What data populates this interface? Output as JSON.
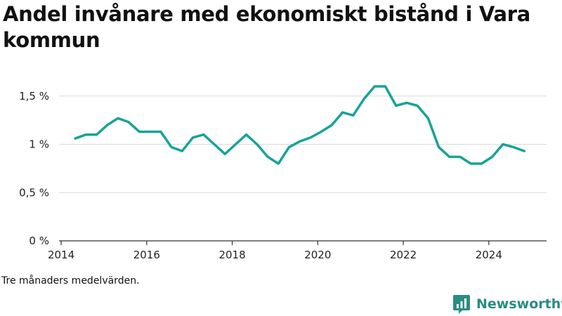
{
  "chart_data": {
    "type": "line",
    "title": "Andel invånare med ekonomiskt bistånd i Vara kommun",
    "xlabel": "",
    "ylabel": "",
    "y_ticks": [
      {
        "value": 0,
        "label": "0 %"
      },
      {
        "value": 0.5,
        "label": "0,5 %"
      },
      {
        "value": 1,
        "label": "1 %"
      },
      {
        "value": 1.5,
        "label": "1,5 %"
      }
    ],
    "x_ticks": [
      {
        "value": 2014,
        "label": "2014"
      },
      {
        "value": 2016,
        "label": "2016"
      },
      {
        "value": 2018,
        "label": "2018"
      },
      {
        "value": 2020,
        "label": "2020"
      },
      {
        "value": 2022,
        "label": "2022"
      },
      {
        "value": 2024,
        "label": "2024"
      }
    ],
    "xlim": [
      2013.95,
      2025.35
    ],
    "ylim": [
      0,
      1.68
    ],
    "grid": "horizontal",
    "series": [
      {
        "color": "#17a398",
        "x": [
          2014.33,
          2014.58,
          2014.83,
          2015.08,
          2015.33,
          2015.58,
          2015.83,
          2016.08,
          2016.33,
          2016.58,
          2016.83,
          2017.08,
          2017.33,
          2017.58,
          2017.83,
          2018.08,
          2018.33,
          2018.58,
          2018.83,
          2019.08,
          2019.33,
          2019.58,
          2019.83,
          2020.08,
          2020.33,
          2020.58,
          2020.83,
          2021.08,
          2021.33,
          2021.58,
          2021.83,
          2022.08,
          2022.33,
          2022.58,
          2022.83,
          2023.08,
          2023.33,
          2023.58,
          2023.83,
          2024.08,
          2024.33,
          2024.58,
          2024.83
        ],
        "values": [
          1.06,
          1.1,
          1.1,
          1.2,
          1.27,
          1.23,
          1.13,
          1.13,
          1.13,
          0.97,
          0.93,
          1.07,
          1.1,
          1.0,
          0.9,
          1.0,
          1.1,
          1.0,
          0.87,
          0.8,
          0.97,
          1.03,
          1.07,
          1.13,
          1.2,
          1.33,
          1.3,
          1.47,
          1.6,
          1.6,
          1.4,
          1.43,
          1.4,
          1.27,
          0.97,
          0.87,
          0.87,
          0.8,
          0.8,
          0.87,
          1.0,
          0.97,
          0.93
        ]
      }
    ]
  },
  "footnote": "Tre månaders medelvärden.",
  "brand": {
    "name": "Newsworthy",
    "color": "#2a8c82",
    "icon": "newsworthy-logo-icon"
  }
}
